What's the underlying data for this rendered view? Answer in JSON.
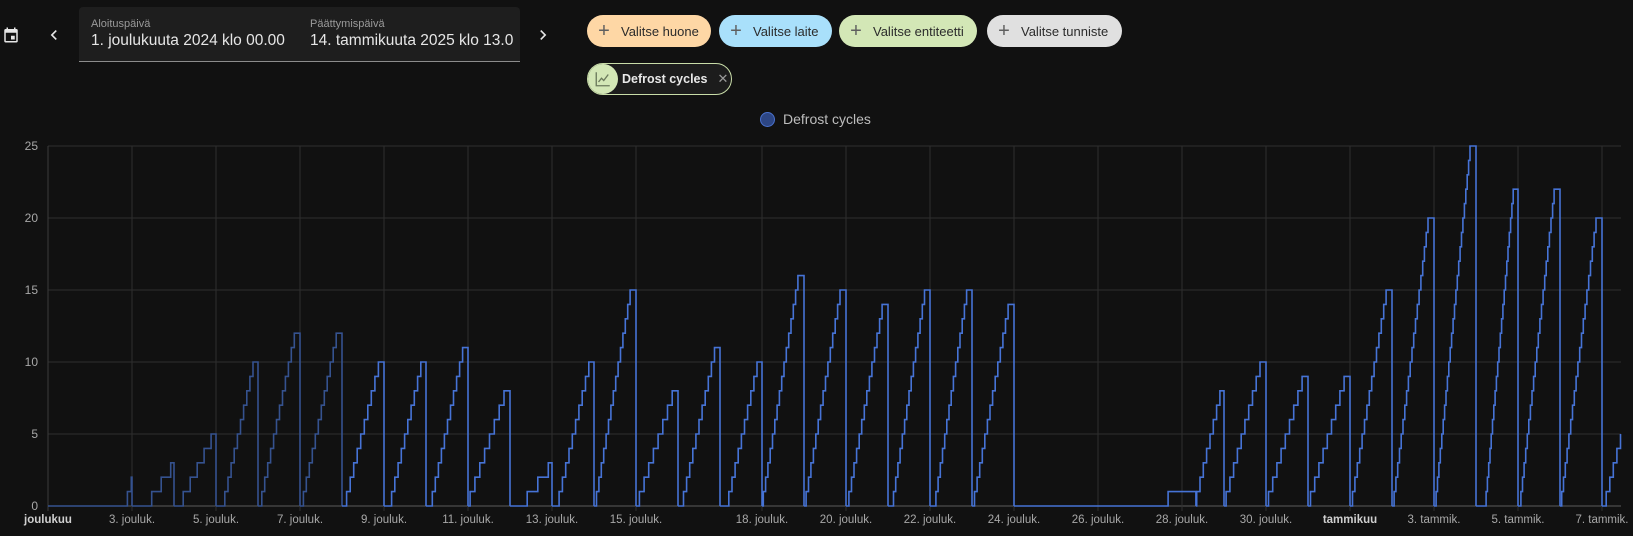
{
  "header": {
    "calendar_icon": "calendar-icon",
    "prev_icon": "chevron-left-icon",
    "next_icon": "chevron-right-icon",
    "start": {
      "label": "Aloituspäivä",
      "value": "1. joulukuuta 2024 klo 00.00"
    },
    "end": {
      "label": "Päättymispäivä",
      "value": "14. tammikuuta 2025 klo 13.0"
    }
  },
  "targets": {
    "chips": [
      {
        "label": "Valitse huone",
        "color": "#fed7a5"
      },
      {
        "label": "Valitse laite",
        "color": "#a9e0fb"
      },
      {
        "label": "Valitse entiteetti",
        "color": "#d3e7b6"
      },
      {
        "label": "Valitse tunniste",
        "color": "#e0e0e0"
      }
    ],
    "selected": {
      "label": "Defrost cycles",
      "icon": "chart-line-icon",
      "remove_icon": "close-icon"
    }
  },
  "chart_data": {
    "type": "line",
    "step": true,
    "title": "",
    "legend": {
      "entries": [
        "Defrost cycles"
      ],
      "placement": "top-center"
    },
    "ylim": [
      0,
      25
    ],
    "xlim_days_since_2024_12_01": [
      0,
      37.44
    ],
    "y_ticks": [
      0,
      5,
      10,
      15,
      20,
      25
    ],
    "x_ticks": [
      {
        "day": 0,
        "label": "joulukuu",
        "bold": true
      },
      {
        "day": 2,
        "label": "3. jouluk."
      },
      {
        "day": 4,
        "label": "5. jouluk."
      },
      {
        "day": 6,
        "label": "7. jouluk."
      },
      {
        "day": 8,
        "label": "9. jouluk."
      },
      {
        "day": 10,
        "label": "11. jouluk."
      },
      {
        "day": 12,
        "label": "13. jouluk."
      },
      {
        "day": 14,
        "label": "15. jouluk."
      },
      {
        "day": 17,
        "label": "18. jouluk."
      },
      {
        "day": 19,
        "label": "20. jouluk."
      },
      {
        "day": 21,
        "label": "22. jouluk."
      },
      {
        "day": 23,
        "label": "24. jouluk."
      },
      {
        "day": 25,
        "label": "26. jouluk."
      },
      {
        "day": 27,
        "label": "28. jouluk."
      },
      {
        "day": 29,
        "label": "30. jouluk."
      },
      {
        "day": 31,
        "label": "tammikuu",
        "bold": true
      },
      {
        "day": 33,
        "label": "3. tammik."
      },
      {
        "day": 35,
        "label": "5. tammik."
      },
      {
        "day": 37,
        "label": "7. tammik."
      }
    ],
    "series": [
      {
        "name": "Defrost cycles",
        "color": "#4673d6",
        "dim_color": "#35528f",
        "cycles_start_peak_reset_days": [
          [
            1.89,
            2,
            2.0
          ],
          [
            2.47,
            3,
            3.0
          ],
          [
            3.22,
            5,
            4.0
          ],
          [
            4.21,
            10,
            5.0
          ],
          [
            5.09,
            12,
            6.0
          ],
          [
            6.08,
            12,
            7.0
          ],
          [
            7.11,
            10,
            8.0
          ],
          [
            8.18,
            10,
            9.0
          ],
          [
            9.15,
            11,
            10.0
          ],
          [
            10.05,
            8,
            11.0
          ],
          [
            11.41,
            3,
            12.0
          ],
          [
            12.17,
            10,
            13.0
          ],
          [
            13.06,
            15,
            14.0
          ],
          [
            14.08,
            8,
            15.0
          ],
          [
            15.13,
            11,
            16.0
          ],
          [
            16.21,
            10,
            17.0
          ],
          [
            17.03,
            16,
            18.0
          ],
          [
            18.05,
            15,
            19.0
          ],
          [
            19.07,
            14,
            20.0
          ],
          [
            20.13,
            15,
            21.0
          ],
          [
            21.14,
            15,
            22.0
          ],
          [
            22.06,
            14,
            23.0
          ],
          [
            26.67,
            1,
            27.33
          ],
          [
            27.35,
            8,
            28.0
          ],
          [
            28.05,
            10,
            29.0
          ],
          [
            29.06,
            9,
            30.0
          ],
          [
            30.06,
            9,
            31.0
          ],
          [
            31.06,
            15,
            32.0
          ],
          [
            32.05,
            20,
            33.0
          ],
          [
            33.05,
            25,
            34.0
          ],
          [
            34.24,
            22,
            35.0
          ],
          [
            35.07,
            22,
            36.0
          ],
          [
            36.04,
            20,
            37.0
          ],
          [
            37.1,
            5,
            null
          ]
        ],
        "dim_before_day": 7.05
      }
    ]
  }
}
